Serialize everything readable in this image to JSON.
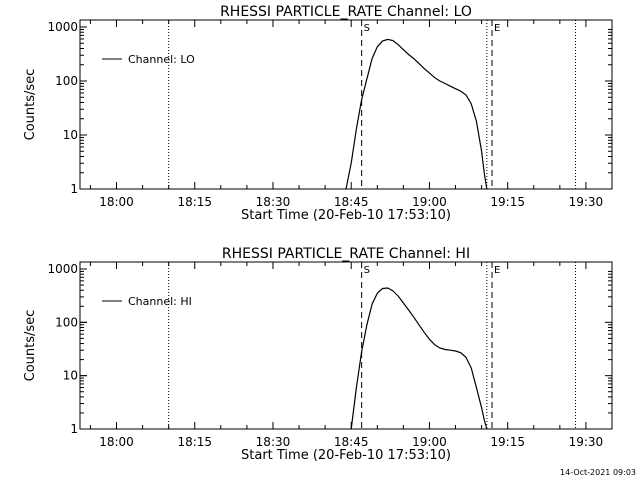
{
  "footer_timestamp": "14-Oct-2021 09:03",
  "chart_data": [
    {
      "type": "line",
      "title": "RHESSI PARTICLE_RATE Channel: LO",
      "xlabel": "Start Time (20-Feb-10 17:53:10)",
      "ylabel": "Counts/sec",
      "yscale": "log",
      "ylim": [
        1,
        1000
      ],
      "xlim": [
        "17:53",
        "19:35"
      ],
      "x_ticks": [
        "18:00",
        "18:15",
        "18:30",
        "18:45",
        "19:00",
        "19:15",
        "19:30"
      ],
      "y_ticks": [
        "1",
        "10",
        "100",
        "1000"
      ],
      "legend": {
        "label": "Channel: LO",
        "position": "top-left"
      },
      "markers": [
        {
          "time": "18:10",
          "style": "dotted",
          "label": ""
        },
        {
          "time": "18:47",
          "style": "dashed",
          "label": "S"
        },
        {
          "time": "19:11",
          "style": "dotted",
          "label": ""
        },
        {
          "time": "19:12",
          "style": "dashed",
          "label": "E"
        },
        {
          "time": "19:28",
          "style": "dotted",
          "label": ""
        }
      ],
      "series": [
        {
          "x": [
            "18:44",
            "18:45",
            "18:46",
            "18:47",
            "18:48",
            "18:49",
            "18:50",
            "18:51",
            "18:52",
            "18:53",
            "18:54",
            "18:55",
            "18:56",
            "18:57",
            "18:58",
            "18:59",
            "19:00",
            "19:01",
            "19:02",
            "19:03",
            "19:04",
            "19:05",
            "19:06",
            "19:07",
            "19:08",
            "19:09",
            "19:10",
            "19:10.5",
            "19:11"
          ],
          "y": [
            1,
            3,
            13,
            45,
            110,
            260,
            430,
            550,
            590,
            560,
            470,
            380,
            310,
            260,
            210,
            170,
            140,
            115,
            100,
            90,
            80,
            72,
            65,
            55,
            38,
            18,
            5,
            2,
            1
          ]
        }
      ]
    },
    {
      "type": "line",
      "title": "RHESSI PARTICLE_RATE Channel: HI",
      "xlabel": "Start Time (20-Feb-10 17:53:10)",
      "ylabel": "Counts/sec",
      "yscale": "log",
      "ylim": [
        1,
        1000
      ],
      "xlim": [
        "17:53",
        "19:35"
      ],
      "x_ticks": [
        "18:00",
        "18:15",
        "18:30",
        "18:45",
        "19:00",
        "19:15",
        "19:30"
      ],
      "y_ticks": [
        "1",
        "10",
        "100",
        "1000"
      ],
      "legend": {
        "label": "Channel: HI",
        "position": "top-left"
      },
      "markers": [
        {
          "time": "18:10",
          "style": "dotted",
          "label": ""
        },
        {
          "time": "18:47",
          "style": "dashed",
          "label": "S"
        },
        {
          "time": "19:11",
          "style": "dotted",
          "label": ""
        },
        {
          "time": "19:12",
          "style": "dashed",
          "label": "E"
        },
        {
          "time": "19:28",
          "style": "dotted",
          "label": ""
        }
      ],
      "series": [
        {
          "x": [
            "18:45",
            "18:46",
            "18:47",
            "18:48",
            "18:49",
            "18:50",
            "18:51",
            "18:52",
            "18:53",
            "18:54",
            "18:55",
            "18:56",
            "18:57",
            "18:58",
            "18:59",
            "19:00",
            "19:01",
            "19:02",
            "19:03",
            "19:04",
            "19:05",
            "19:06",
            "19:07",
            "19:08",
            "19:09",
            "19:10",
            "19:10.5",
            "19:11"
          ],
          "y": [
            1,
            6,
            28,
            90,
            220,
            350,
            430,
            440,
            390,
            310,
            230,
            170,
            125,
            90,
            65,
            48,
            38,
            33,
            31,
            30,
            29,
            27,
            22,
            14,
            6,
            2.5,
            1.5,
            1
          ]
        }
      ]
    }
  ]
}
